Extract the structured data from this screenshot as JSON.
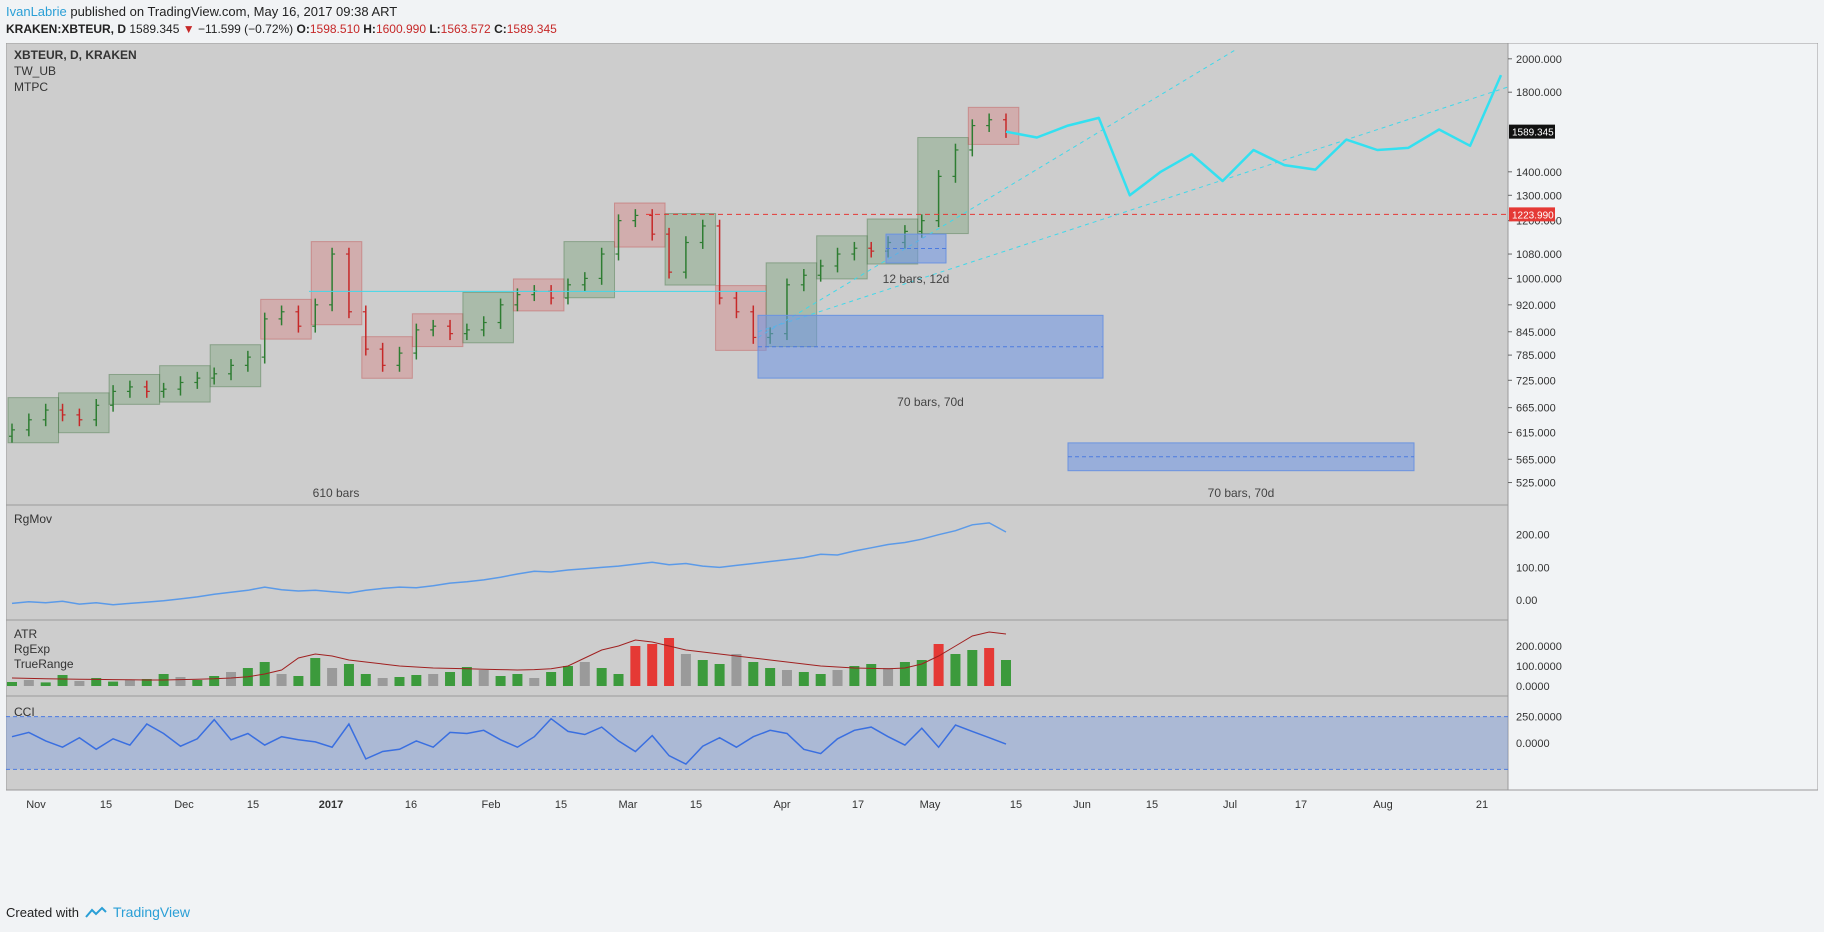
{
  "header": {
    "author": "IvanLabrie",
    "published": "published on TradingView.com, May 16, 2017 09:38 ART",
    "symbol": "KRAKEN:XBTEUR, D",
    "last": "1589.345",
    "change": "−11.599 (−0.72%)",
    "open_label": "O:",
    "open": "1598.510",
    "high_label": "H:",
    "high": "1600.990",
    "low_label": "L:",
    "low": "1563.572",
    "close_label": "C:",
    "close": "1589.345"
  },
  "legend": {
    "symbol": "XBTEUR, D, KRAKEN",
    "studies": [
      "TW_UB",
      "MTPC"
    ]
  },
  "footer": {
    "created_with": "Created with",
    "brand": "TradingView"
  },
  "colors": {
    "pane_bg": "#cdcdcd",
    "up_bar": "#2e7d32",
    "down_bar": "#c62828",
    "projection": "#33e0f0",
    "resistance": "#e53935",
    "range_box": "#7b9fe0",
    "indicator_line": "#5b9ae8",
    "atr_line": "#a02020"
  },
  "chart_data": [
    {
      "type": "line",
      "name": "price",
      "ylim": [
        500,
        2050
      ],
      "yscale": "log",
      "yticks": [
        "2000.000",
        "1800.000",
        "1400.000",
        "1300.000",
        "1200.000",
        "1080.000",
        "1000.000",
        "920.000",
        "845.000",
        "785.000",
        "725.000",
        "665.000",
        "615.000",
        "565.000",
        "525.000"
      ],
      "ytick_values": [
        2000,
        1800,
        1400,
        1300,
        1200,
        1080,
        1000,
        920,
        845,
        785,
        725,
        665,
        615,
        565,
        525
      ],
      "xticks": [
        "Nov",
        "15",
        "Dec",
        "15",
        "2017",
        "16",
        "Feb",
        "15",
        "Mar",
        "15",
        "Apr",
        "17",
        "May",
        "15",
        "Jun",
        "15",
        "Jul",
        "17",
        "Aug",
        "21"
      ],
      "last_price_label": "1589.345",
      "resistance_label": "1223.990",
      "resistance": 1223.99,
      "bars_count_label": "610 bars",
      "range_labels": [
        "12 bars, 12d",
        "70 bars, 70d",
        "70 bars, 70d"
      ],
      "candles_approx_close": [
        620,
        640,
        660,
        650,
        640,
        670,
        700,
        710,
        700,
        705,
        720,
        730,
        740,
        760,
        780,
        880,
        900,
        860,
        920,
        1080,
        900,
        800,
        760,
        790,
        850,
        860,
        840,
        850,
        870,
        920,
        950,
        960,
        940,
        980,
        1000,
        1080,
        1200,
        1220,
        1150,
        1020,
        1120,
        1180,
        940,
        900,
        830,
        840,
        980,
        1010,
        1040,
        1080,
        1100,
        1090,
        1120,
        1160,
        1200,
        1380,
        1500,
        1620,
        1650,
        1590
      ],
      "projection_points": [
        [
          0,
          1589
        ],
        [
          1,
          1560
        ],
        [
          2,
          1620
        ],
        [
          3,
          1660
        ],
        [
          4,
          1300
        ],
        [
          5,
          1400
        ],
        [
          6,
          1480
        ],
        [
          7,
          1360
        ],
        [
          8,
          1500
        ],
        [
          9,
          1430
        ],
        [
          10,
          1410
        ],
        [
          11,
          1550
        ],
        [
          12,
          1500
        ],
        [
          13,
          1510
        ],
        [
          14,
          1600
        ],
        [
          15,
          1520
        ],
        [
          16,
          1900
        ]
      ]
    },
    {
      "type": "line",
      "name": "RgMov",
      "yticks": [
        "200.00",
        "100.00",
        "0.00"
      ],
      "ylim": [
        -30,
        260
      ],
      "values": [
        -10,
        -5,
        -8,
        -3,
        -12,
        -8,
        -14,
        -10,
        -6,
        -2,
        4,
        10,
        18,
        24,
        30,
        40,
        32,
        28,
        30,
        26,
        22,
        30,
        36,
        40,
        38,
        44,
        52,
        56,
        62,
        70,
        80,
        88,
        86,
        92,
        96,
        100,
        104,
        110,
        116,
        108,
        112,
        104,
        100,
        106,
        112,
        118,
        124,
        130,
        140,
        138,
        150,
        160,
        170,
        176,
        186,
        200,
        212,
        230,
        236,
        208
      ]
    },
    {
      "type": "bar",
      "name": "ATR",
      "series_names": [
        "ATR",
        "RgExp",
        "TrueRange"
      ],
      "yticks": [
        "200.0000",
        "100.0000",
        "0.0000"
      ],
      "ylim": [
        0,
        280
      ],
      "values": [
        20,
        30,
        18,
        55,
        25,
        40,
        22,
        30,
        35,
        60,
        45,
        30,
        50,
        70,
        90,
        120,
        60,
        50,
        140,
        90,
        110,
        60,
        40,
        45,
        55,
        60,
        70,
        95,
        80,
        50,
        60,
        40,
        70,
        100,
        120,
        90,
        60,
        200,
        210,
        240,
        160,
        130,
        110,
        160,
        120,
        90,
        80,
        70,
        60,
        80,
        100,
        110,
        90,
        120,
        130,
        210,
        160,
        180,
        190,
        130
      ],
      "line": [
        40,
        38,
        36,
        35,
        34,
        33,
        32,
        31,
        30,
        30,
        32,
        34,
        36,
        40,
        46,
        60,
        80,
        140,
        160,
        150,
        130,
        120,
        110,
        100,
        95,
        90,
        88,
        86,
        84,
        82,
        80,
        82,
        86,
        100,
        140,
        180,
        200,
        230,
        220,
        200,
        180,
        170,
        160,
        150,
        140,
        130,
        120,
        110,
        100,
        95,
        90,
        88,
        86,
        90,
        110,
        150,
        200,
        250,
        270,
        260
      ]
    },
    {
      "type": "line",
      "name": "CCI",
      "yticks": [
        "250.0000",
        "0.0000"
      ],
      "ylim": [
        -350,
        350
      ],
      "values": [
        60,
        100,
        20,
        -40,
        50,
        -60,
        40,
        -20,
        180,
        90,
        -30,
        40,
        220,
        30,
        90,
        -20,
        60,
        30,
        10,
        -40,
        180,
        -150,
        -80,
        -60,
        20,
        -40,
        100,
        90,
        120,
        30,
        -40,
        60,
        230,
        110,
        80,
        150,
        20,
        -80,
        70,
        -120,
        -200,
        -30,
        50,
        -40,
        60,
        120,
        90,
        -60,
        -100,
        40,
        120,
        150,
        60,
        -20,
        140,
        -40,
        170,
        110,
        50,
        -10
      ]
    }
  ]
}
